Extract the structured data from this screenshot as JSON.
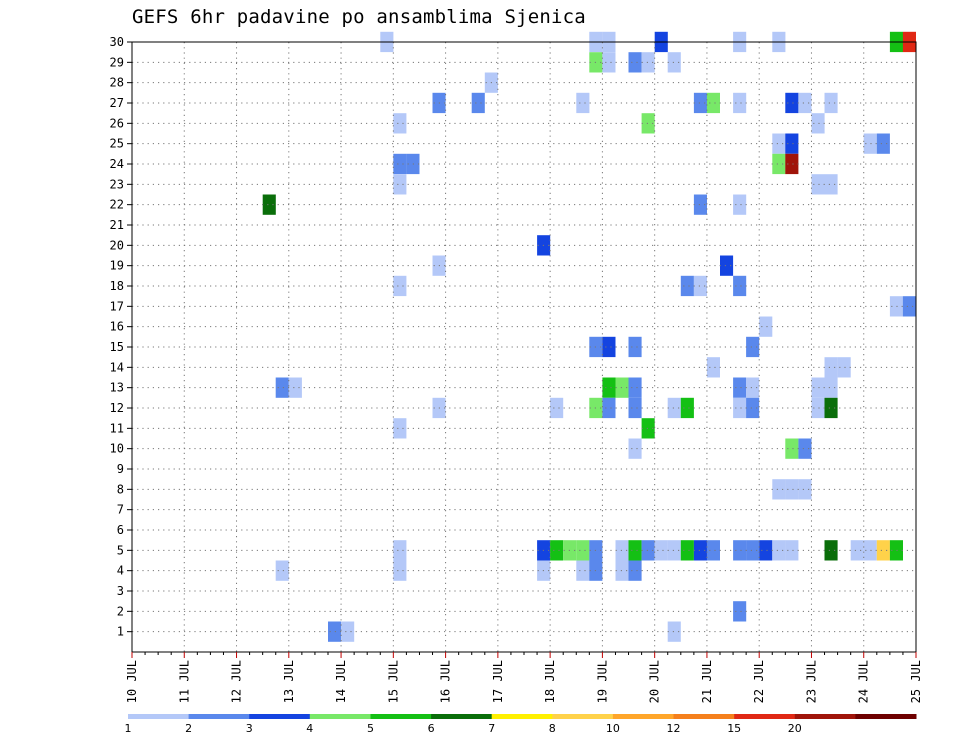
{
  "chart_data": {
    "type": "heatmap",
    "title": "GEFS 6hr padavine po ansamblima Sjenica",
    "x_tick_labels": [
      "10 JUL",
      "11 JUL",
      "12 JUL",
      "13 JUL",
      "14 JUL",
      "15 JUL",
      "16 JUL",
      "17 JUL",
      "18 JUL",
      "19 JUL",
      "20 JUL",
      "21 JUL",
      "22 JUL",
      "23 JUL",
      "24 JUL",
      "25 JUL"
    ],
    "y_tick_labels": [
      "1",
      "2",
      "3",
      "4",
      "5",
      "6",
      "7",
      "8",
      "9",
      "10",
      "11",
      "12",
      "13",
      "14",
      "15",
      "16",
      "17",
      "18",
      "19",
      "20",
      "21",
      "22",
      "23",
      "24",
      "25",
      "26",
      "27",
      "28",
      "29",
      "30"
    ],
    "x_unit": "6-hour step (day + fraction)",
    "ylim": [
      0,
      30
    ],
    "xlim": [
      0,
      15
    ],
    "grid": true,
    "colorbar": {
      "labels": [
        "1",
        "2",
        "3",
        "4",
        "5",
        "6",
        "7",
        "8",
        "10",
        "12",
        "15",
        "20"
      ],
      "colors": [
        "#b4c8f8",
        "#5a88ec",
        "#1444e0",
        "#78e868",
        "#14c014",
        "#0a6e0a",
        "#fff000",
        "#ffd24a",
        "#ffa62a",
        "#f5801c",
        "#e02814",
        "#a0140a",
        "#6e0000"
      ]
    },
    "cells": [
      {
        "x": 14.75,
        "y": 30,
        "c": 4
      },
      {
        "x": 15.0,
        "y": 30,
        "c": 10
      },
      {
        "x": 5.0,
        "y": 30,
        "c": 0
      },
      {
        "x": 9.0,
        "y": 30,
        "c": 0
      },
      {
        "x": 9.25,
        "y": 30,
        "c": 0
      },
      {
        "x": 10.25,
        "y": 30,
        "c": 2
      },
      {
        "x": 11.75,
        "y": 30,
        "c": 0
      },
      {
        "x": 12.5,
        "y": 30,
        "c": 0
      },
      {
        "x": 9.0,
        "y": 29,
        "c": 3
      },
      {
        "x": 9.25,
        "y": 29,
        "c": 0
      },
      {
        "x": 9.75,
        "y": 29,
        "c": 1
      },
      {
        "x": 10.0,
        "y": 29,
        "c": 0
      },
      {
        "x": 10.5,
        "y": 29,
        "c": 0
      },
      {
        "x": 7.0,
        "y": 28,
        "c": 0
      },
      {
        "x": 6.0,
        "y": 27,
        "c": 1
      },
      {
        "x": 6.75,
        "y": 27,
        "c": 1
      },
      {
        "x": 8.75,
        "y": 27,
        "c": 0
      },
      {
        "x": 11.0,
        "y": 27,
        "c": 1
      },
      {
        "x": 11.25,
        "y": 27,
        "c": 3
      },
      {
        "x": 11.75,
        "y": 27,
        "c": 0
      },
      {
        "x": 12.75,
        "y": 27,
        "c": 2
      },
      {
        "x": 13.0,
        "y": 27,
        "c": 0
      },
      {
        "x": 13.5,
        "y": 27,
        "c": 0
      },
      {
        "x": 5.25,
        "y": 26,
        "c": 0
      },
      {
        "x": 10.0,
        "y": 26,
        "c": 3
      },
      {
        "x": 13.25,
        "y": 26,
        "c": 0
      },
      {
        "x": 12.5,
        "y": 25,
        "c": 0
      },
      {
        "x": 12.75,
        "y": 25,
        "c": 2
      },
      {
        "x": 14.25,
        "y": 25,
        "c": 0
      },
      {
        "x": 14.5,
        "y": 25,
        "c": 1
      },
      {
        "x": 5.25,
        "y": 24,
        "c": 1
      },
      {
        "x": 5.5,
        "y": 24,
        "c": 1
      },
      {
        "x": 12.5,
        "y": 24,
        "c": 3
      },
      {
        "x": 12.75,
        "y": 24,
        "c": 11
      },
      {
        "x": 5.25,
        "y": 23,
        "c": 0
      },
      {
        "x": 13.25,
        "y": 23,
        "c": 0
      },
      {
        "x": 13.5,
        "y": 23,
        "c": 0
      },
      {
        "x": 2.75,
        "y": 22,
        "c": 5
      },
      {
        "x": 11.0,
        "y": 22,
        "c": 1
      },
      {
        "x": 11.75,
        "y": 22,
        "c": 0
      },
      {
        "x": 8.0,
        "y": 20,
        "c": 2
      },
      {
        "x": 11.5,
        "y": 19,
        "c": 2
      },
      {
        "x": 6.0,
        "y": 19,
        "c": 0
      },
      {
        "x": 5.25,
        "y": 18,
        "c": 0
      },
      {
        "x": 10.75,
        "y": 18,
        "c": 1
      },
      {
        "x": 11.0,
        "y": 18,
        "c": 0
      },
      {
        "x": 11.75,
        "y": 18,
        "c": 1
      },
      {
        "x": 14.75,
        "y": 17,
        "c": 0
      },
      {
        "x": 15.0,
        "y": 17,
        "c": 1
      },
      {
        "x": 12.25,
        "y": 16,
        "c": 0
      },
      {
        "x": 9.0,
        "y": 15,
        "c": 1
      },
      {
        "x": 9.25,
        "y": 15,
        "c": 2
      },
      {
        "x": 9.75,
        "y": 15,
        "c": 1
      },
      {
        "x": 12.0,
        "y": 15,
        "c": 1
      },
      {
        "x": 11.25,
        "y": 14,
        "c": 0
      },
      {
        "x": 13.5,
        "y": 14,
        "c": 0
      },
      {
        "x": 13.75,
        "y": 14,
        "c": 0
      },
      {
        "x": 3.0,
        "y": 13,
        "c": 1
      },
      {
        "x": 3.25,
        "y": 13,
        "c": 0
      },
      {
        "x": 9.25,
        "y": 13,
        "c": 4
      },
      {
        "x": 9.5,
        "y": 13,
        "c": 3
      },
      {
        "x": 9.75,
        "y": 13,
        "c": 1
      },
      {
        "x": 11.75,
        "y": 13,
        "c": 1
      },
      {
        "x": 12.0,
        "y": 13,
        "c": 0
      },
      {
        "x": 13.25,
        "y": 13,
        "c": 0
      },
      {
        "x": 13.5,
        "y": 13,
        "c": 0
      },
      {
        "x": 6.0,
        "y": 12,
        "c": 0
      },
      {
        "x": 8.25,
        "y": 12,
        "c": 0
      },
      {
        "x": 9.0,
        "y": 12,
        "c": 3
      },
      {
        "x": 9.25,
        "y": 12,
        "c": 1
      },
      {
        "x": 9.75,
        "y": 12,
        "c": 1
      },
      {
        "x": 10.5,
        "y": 12,
        "c": 0
      },
      {
        "x": 10.75,
        "y": 12,
        "c": 4
      },
      {
        "x": 11.75,
        "y": 12,
        "c": 0
      },
      {
        "x": 12.0,
        "y": 12,
        "c": 1
      },
      {
        "x": 13.25,
        "y": 12,
        "c": 0
      },
      {
        "x": 13.5,
        "y": 12,
        "c": 5
      },
      {
        "x": 5.25,
        "y": 11,
        "c": 0
      },
      {
        "x": 10.0,
        "y": 11,
        "c": 4
      },
      {
        "x": 9.75,
        "y": 10,
        "c": 0
      },
      {
        "x": 12.75,
        "y": 10,
        "c": 3
      },
      {
        "x": 13.0,
        "y": 10,
        "c": 1
      },
      {
        "x": 12.5,
        "y": 8,
        "c": 0
      },
      {
        "x": 12.75,
        "y": 8,
        "c": 0
      },
      {
        "x": 13.0,
        "y": 8,
        "c": 0
      },
      {
        "x": 8.0,
        "y": 5,
        "c": 2
      },
      {
        "x": 8.25,
        "y": 5,
        "c": 4
      },
      {
        "x": 8.5,
        "y": 5,
        "c": 3
      },
      {
        "x": 8.75,
        "y": 5,
        "c": 3
      },
      {
        "x": 9.0,
        "y": 5,
        "c": 1
      },
      {
        "x": 9.5,
        "y": 5,
        "c": 0
      },
      {
        "x": 9.75,
        "y": 5,
        "c": 4
      },
      {
        "x": 10.0,
        "y": 5,
        "c": 1
      },
      {
        "x": 10.25,
        "y": 5,
        "c": 0
      },
      {
        "x": 10.5,
        "y": 5,
        "c": 0
      },
      {
        "x": 10.75,
        "y": 5,
        "c": 4
      },
      {
        "x": 11.0,
        "y": 5,
        "c": 2
      },
      {
        "x": 11.25,
        "y": 5,
        "c": 1
      },
      {
        "x": 11.75,
        "y": 5,
        "c": 1
      },
      {
        "x": 12.0,
        "y": 5,
        "c": 1
      },
      {
        "x": 12.25,
        "y": 5,
        "c": 2
      },
      {
        "x": 12.5,
        "y": 5,
        "c": 0
      },
      {
        "x": 12.75,
        "y": 5,
        "c": 0
      },
      {
        "x": 13.5,
        "y": 5,
        "c": 5
      },
      {
        "x": 14.0,
        "y": 5,
        "c": 0
      },
      {
        "x": 14.25,
        "y": 5,
        "c": 0
      },
      {
        "x": 14.5,
        "y": 5,
        "c": 7
      },
      {
        "x": 14.75,
        "y": 5,
        "c": 4
      },
      {
        "x": 5.25,
        "y": 5,
        "c": 0
      },
      {
        "x": 3.0,
        "y": 4,
        "c": 0
      },
      {
        "x": 5.25,
        "y": 4,
        "c": 0
      },
      {
        "x": 8.0,
        "y": 4,
        "c": 0
      },
      {
        "x": 8.75,
        "y": 4,
        "c": 0
      },
      {
        "x": 9.0,
        "y": 4,
        "c": 1
      },
      {
        "x": 9.5,
        "y": 4,
        "c": 0
      },
      {
        "x": 9.75,
        "y": 4,
        "c": 1
      },
      {
        "x": 4.0,
        "y": 1,
        "c": 1
      },
      {
        "x": 4.25,
        "y": 1,
        "c": 0
      },
      {
        "x": 11.75,
        "y": 2,
        "c": 1
      },
      {
        "x": 10.5,
        "y": 1,
        "c": 0
      }
    ]
  }
}
